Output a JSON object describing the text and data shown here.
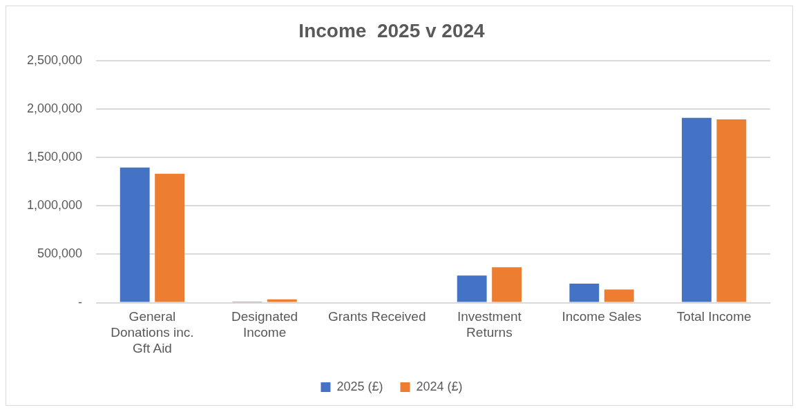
{
  "chart_data": {
    "type": "bar",
    "title": "Income  2025 v 2024",
    "categories": [
      "General Donations inc. Gft Aid",
      "Designated Income",
      "Grants Received",
      "Investment Returns",
      "Income Sales",
      "Total Income"
    ],
    "series": [
      {
        "name": "2025 (£)",
        "color": "#4472c4",
        "values": [
          1395000,
          12000,
          0,
          280000,
          197000,
          1907000
        ]
      },
      {
        "name": "2024 (£)",
        "color": "#ed7d31",
        "values": [
          1331000,
          35000,
          0,
          366000,
          136000,
          1892000
        ]
      }
    ],
    "ylim": [
      0,
      2500000
    ],
    "yticks": [
      {
        "value": 0,
        "label": "-"
      },
      {
        "value": 500000,
        "label": "500,000"
      },
      {
        "value": 1000000,
        "label": "1,000,000"
      },
      {
        "value": 1500000,
        "label": "1,500,000"
      },
      {
        "value": 2000000,
        "label": "2,000,000"
      },
      {
        "value": 2500000,
        "label": "2,500,000"
      }
    ],
    "grid": "y",
    "legend": "bottom"
  }
}
